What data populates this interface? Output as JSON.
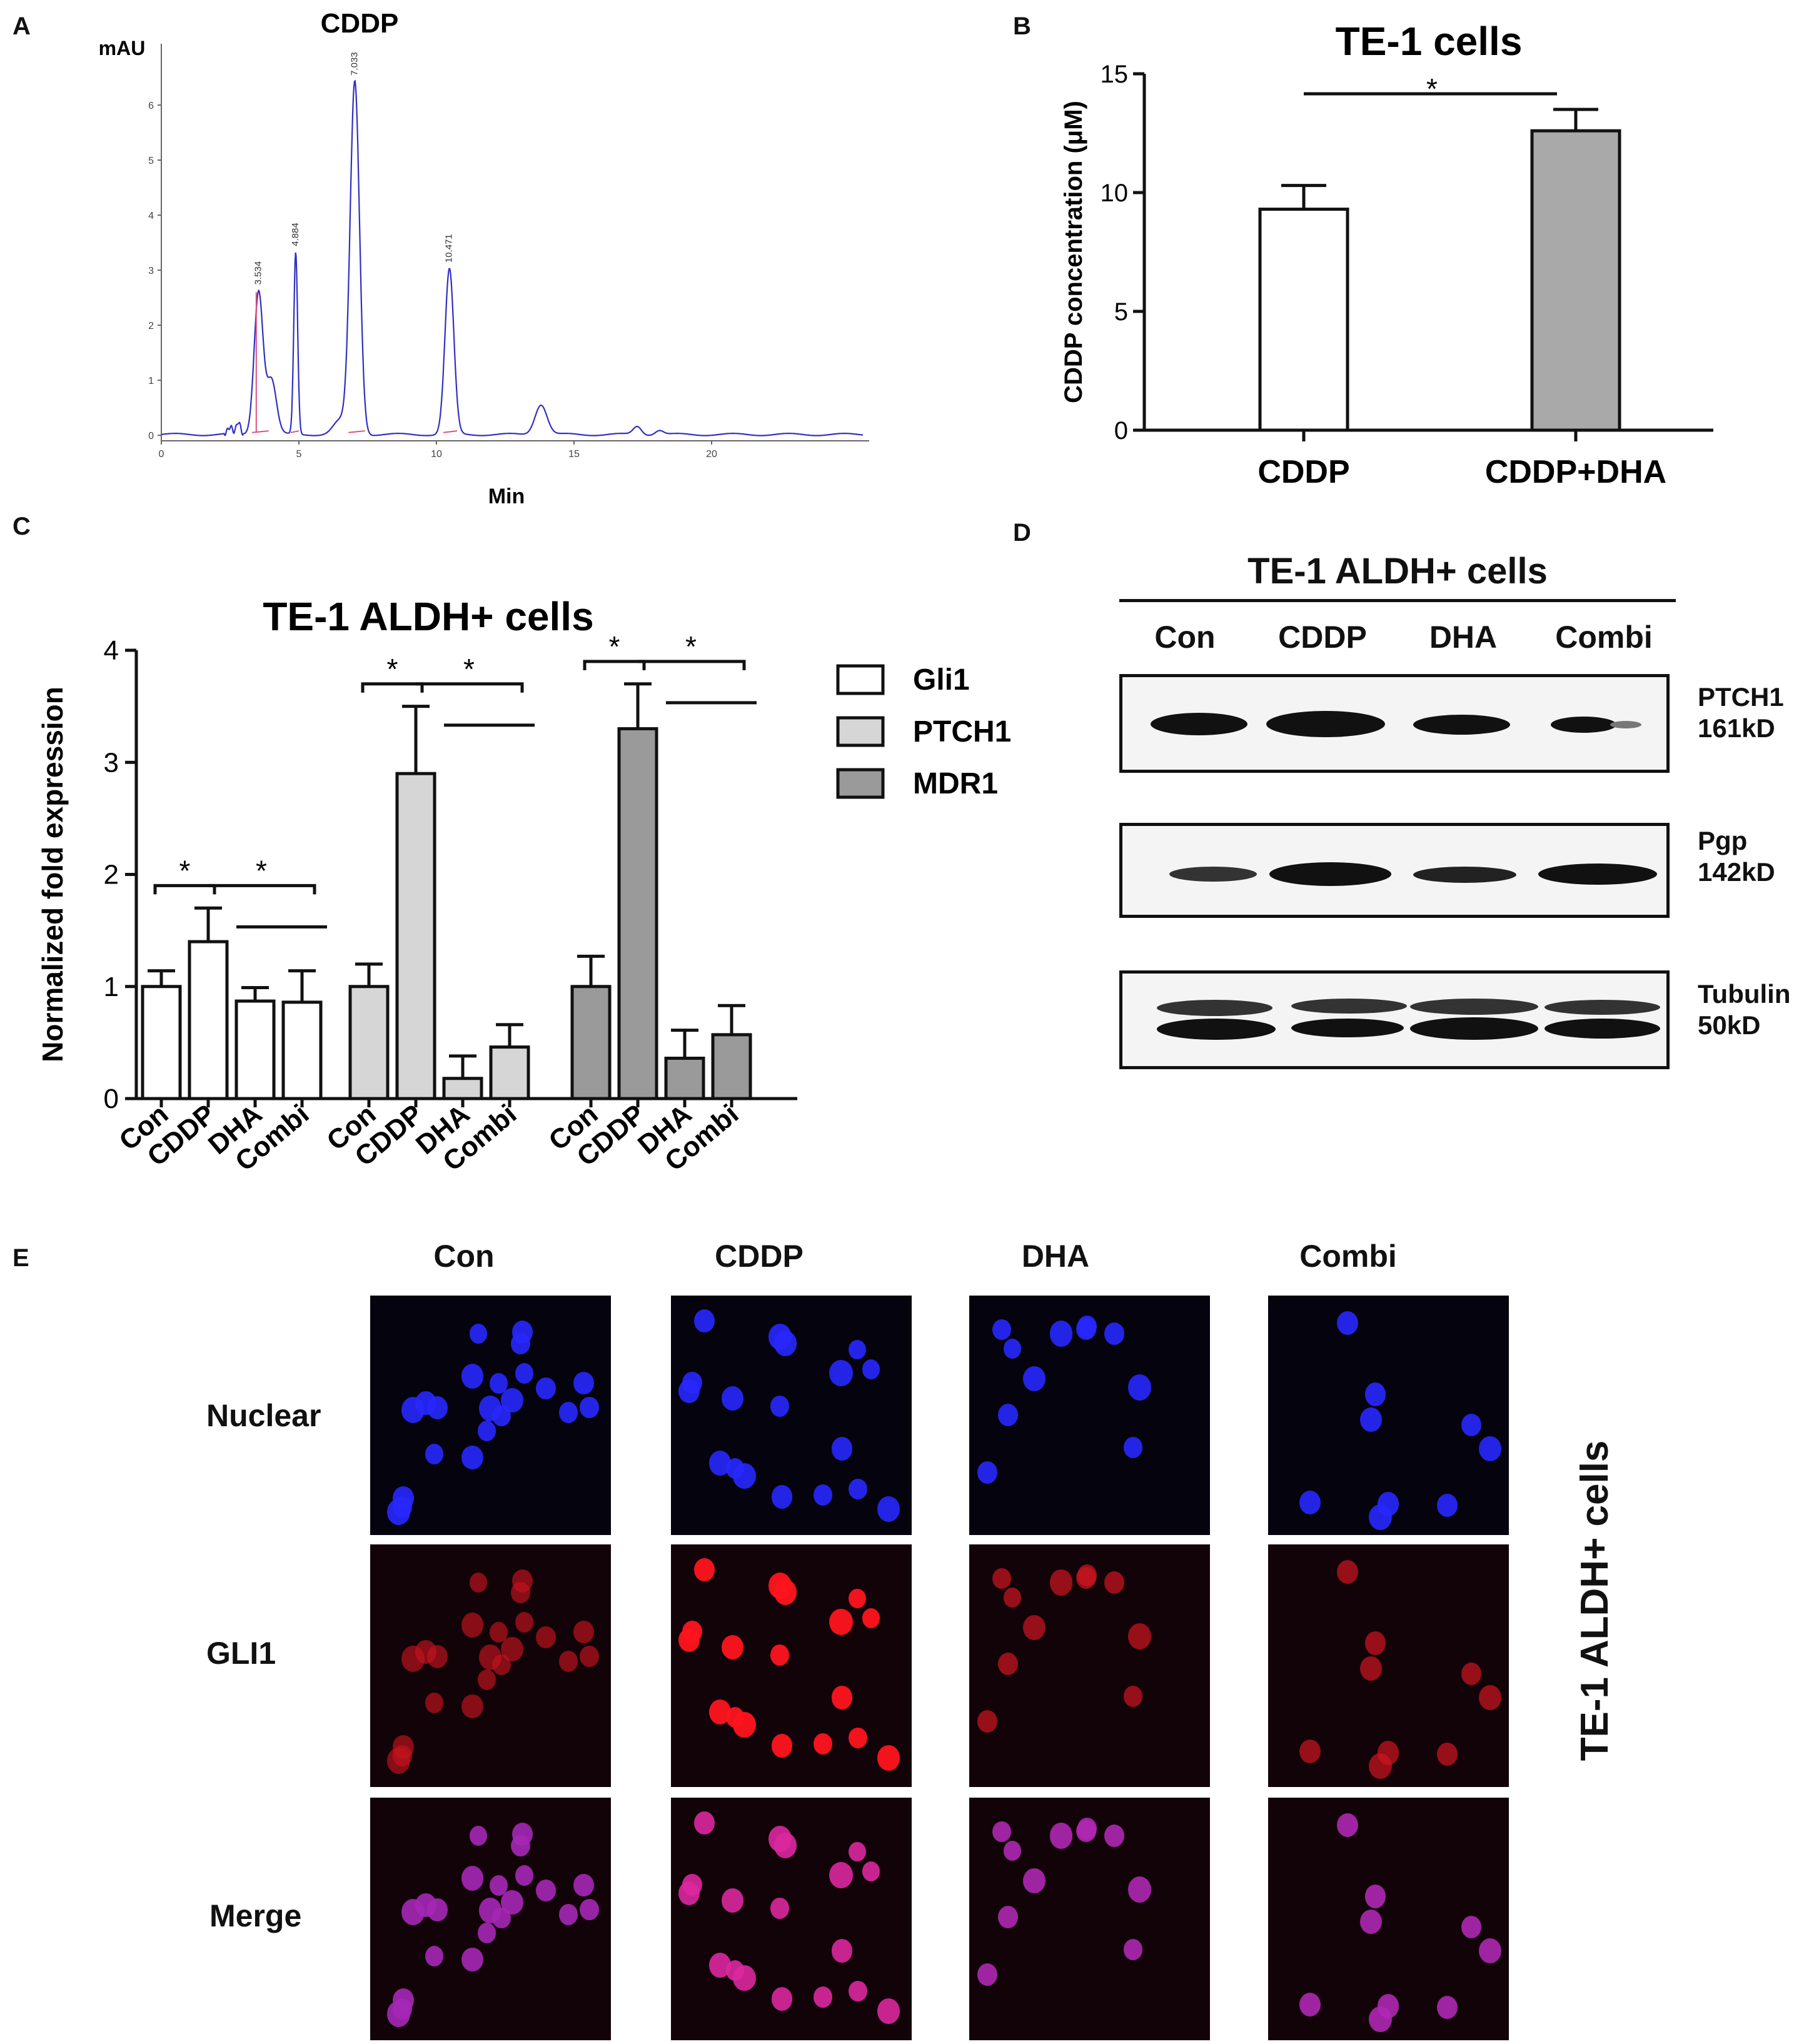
{
  "panels": {
    "a": "A",
    "b": "B",
    "c": "C",
    "d": "D",
    "e": "E"
  },
  "chart_data": [
    {
      "panel": "A",
      "type": "line",
      "title": "CDDP",
      "ylabel": "mAU",
      "xlabel": "Min",
      "xlim": [
        0,
        25.5
      ],
      "ylim": [
        -0.1,
        7.0
      ],
      "x_ticks": [
        0,
        5,
        10,
        15,
        20
      ],
      "y_ticks": [
        0,
        1,
        2,
        3,
        4,
        5,
        6
      ],
      "peak_labels": [
        "3.534",
        "4.884",
        "7.033",
        "10.471"
      ],
      "peaks": [
        {
          "rt": 2.5,
          "height": 0.12,
          "width": 0.08
        },
        {
          "rt": 2.8,
          "height": 0.22,
          "width": 0.07
        },
        {
          "rt": 3.534,
          "height": 2.6,
          "width": 0.16
        },
        {
          "rt": 4.0,
          "height": 1.0,
          "width": 0.18
        },
        {
          "rt": 4.884,
          "height": 3.3,
          "width": 0.07
        },
        {
          "rt": 6.5,
          "height": 0.25,
          "width": 0.25
        },
        {
          "rt": 7.033,
          "height": 6.4,
          "width": 0.17
        },
        {
          "rt": 10.471,
          "height": 3.0,
          "width": 0.16
        },
        {
          "rt": 13.8,
          "height": 0.55,
          "width": 0.22
        },
        {
          "rt": 17.3,
          "height": 0.15,
          "width": 0.15
        },
        {
          "rt": 18.1,
          "height": 0.08,
          "width": 0.15
        }
      ],
      "series": [
        {
          "name": "",
          "color": "#3030c0"
        },
        {
          "name": "",
          "color": "#e05080"
        }
      ]
    },
    {
      "panel": "B",
      "type": "bar",
      "title": "TE-1 cells",
      "ylabel": "CDDP concentration (μM)",
      "categories": [
        "CDDP",
        "CDDP+DHA"
      ],
      "values": [
        9.3,
        12.6
      ],
      "errors": [
        1.0,
        0.9
      ],
      "colors": [
        "#ffffff",
        "#a9a9a9"
      ],
      "ylim": [
        0,
        15
      ],
      "y_ticks": [
        0,
        5,
        10,
        15
      ],
      "significance": "*"
    },
    {
      "panel": "C",
      "type": "bar",
      "title": "TE-1 ALDH+ cells",
      "ylabel": "Normalized fold expression",
      "ylim": [
        0,
        4
      ],
      "y_ticks": [
        0,
        1,
        2,
        3,
        4
      ],
      "categories": [
        "Con",
        "CDDP",
        "DHA",
        "Combi"
      ],
      "series": [
        {
          "name": "Gli1",
          "color": "#ffffff",
          "values": [
            1.0,
            1.4,
            0.87,
            0.86
          ],
          "errors": [
            0.14,
            0.3,
            0.12,
            0.28
          ]
        },
        {
          "name": "PTCH1",
          "color": "#d6d6d6",
          "values": [
            1.0,
            2.9,
            0.18,
            0.46
          ],
          "errors": [
            0.2,
            0.6,
            0.2,
            0.2
          ]
        },
        {
          "name": "MDR1",
          "color": "#9a9a9a",
          "values": [
            1.0,
            3.3,
            0.36,
            0.57
          ],
          "errors": [
            0.27,
            0.4,
            0.25,
            0.26
          ]
        }
      ],
      "significance": "*"
    }
  ],
  "western_blot": {
    "title": "TE-1 ALDH+ cells",
    "lanes": [
      "Con",
      "CDDP",
      "DHA",
      "Combi"
    ],
    "blots": [
      {
        "label": "PTCH1",
        "size": "161kD"
      },
      {
        "label": "Pgp",
        "size": "142kD"
      },
      {
        "label": "Tubulin",
        "size": "50kD"
      }
    ]
  },
  "immunofluorescence": {
    "columns": [
      "Con",
      "CDDP",
      "DHA",
      "Combi"
    ],
    "rows": [
      "Nuclear",
      "GLI1",
      "Merge"
    ],
    "side_label": "TE-1 ALDH+ cells"
  }
}
